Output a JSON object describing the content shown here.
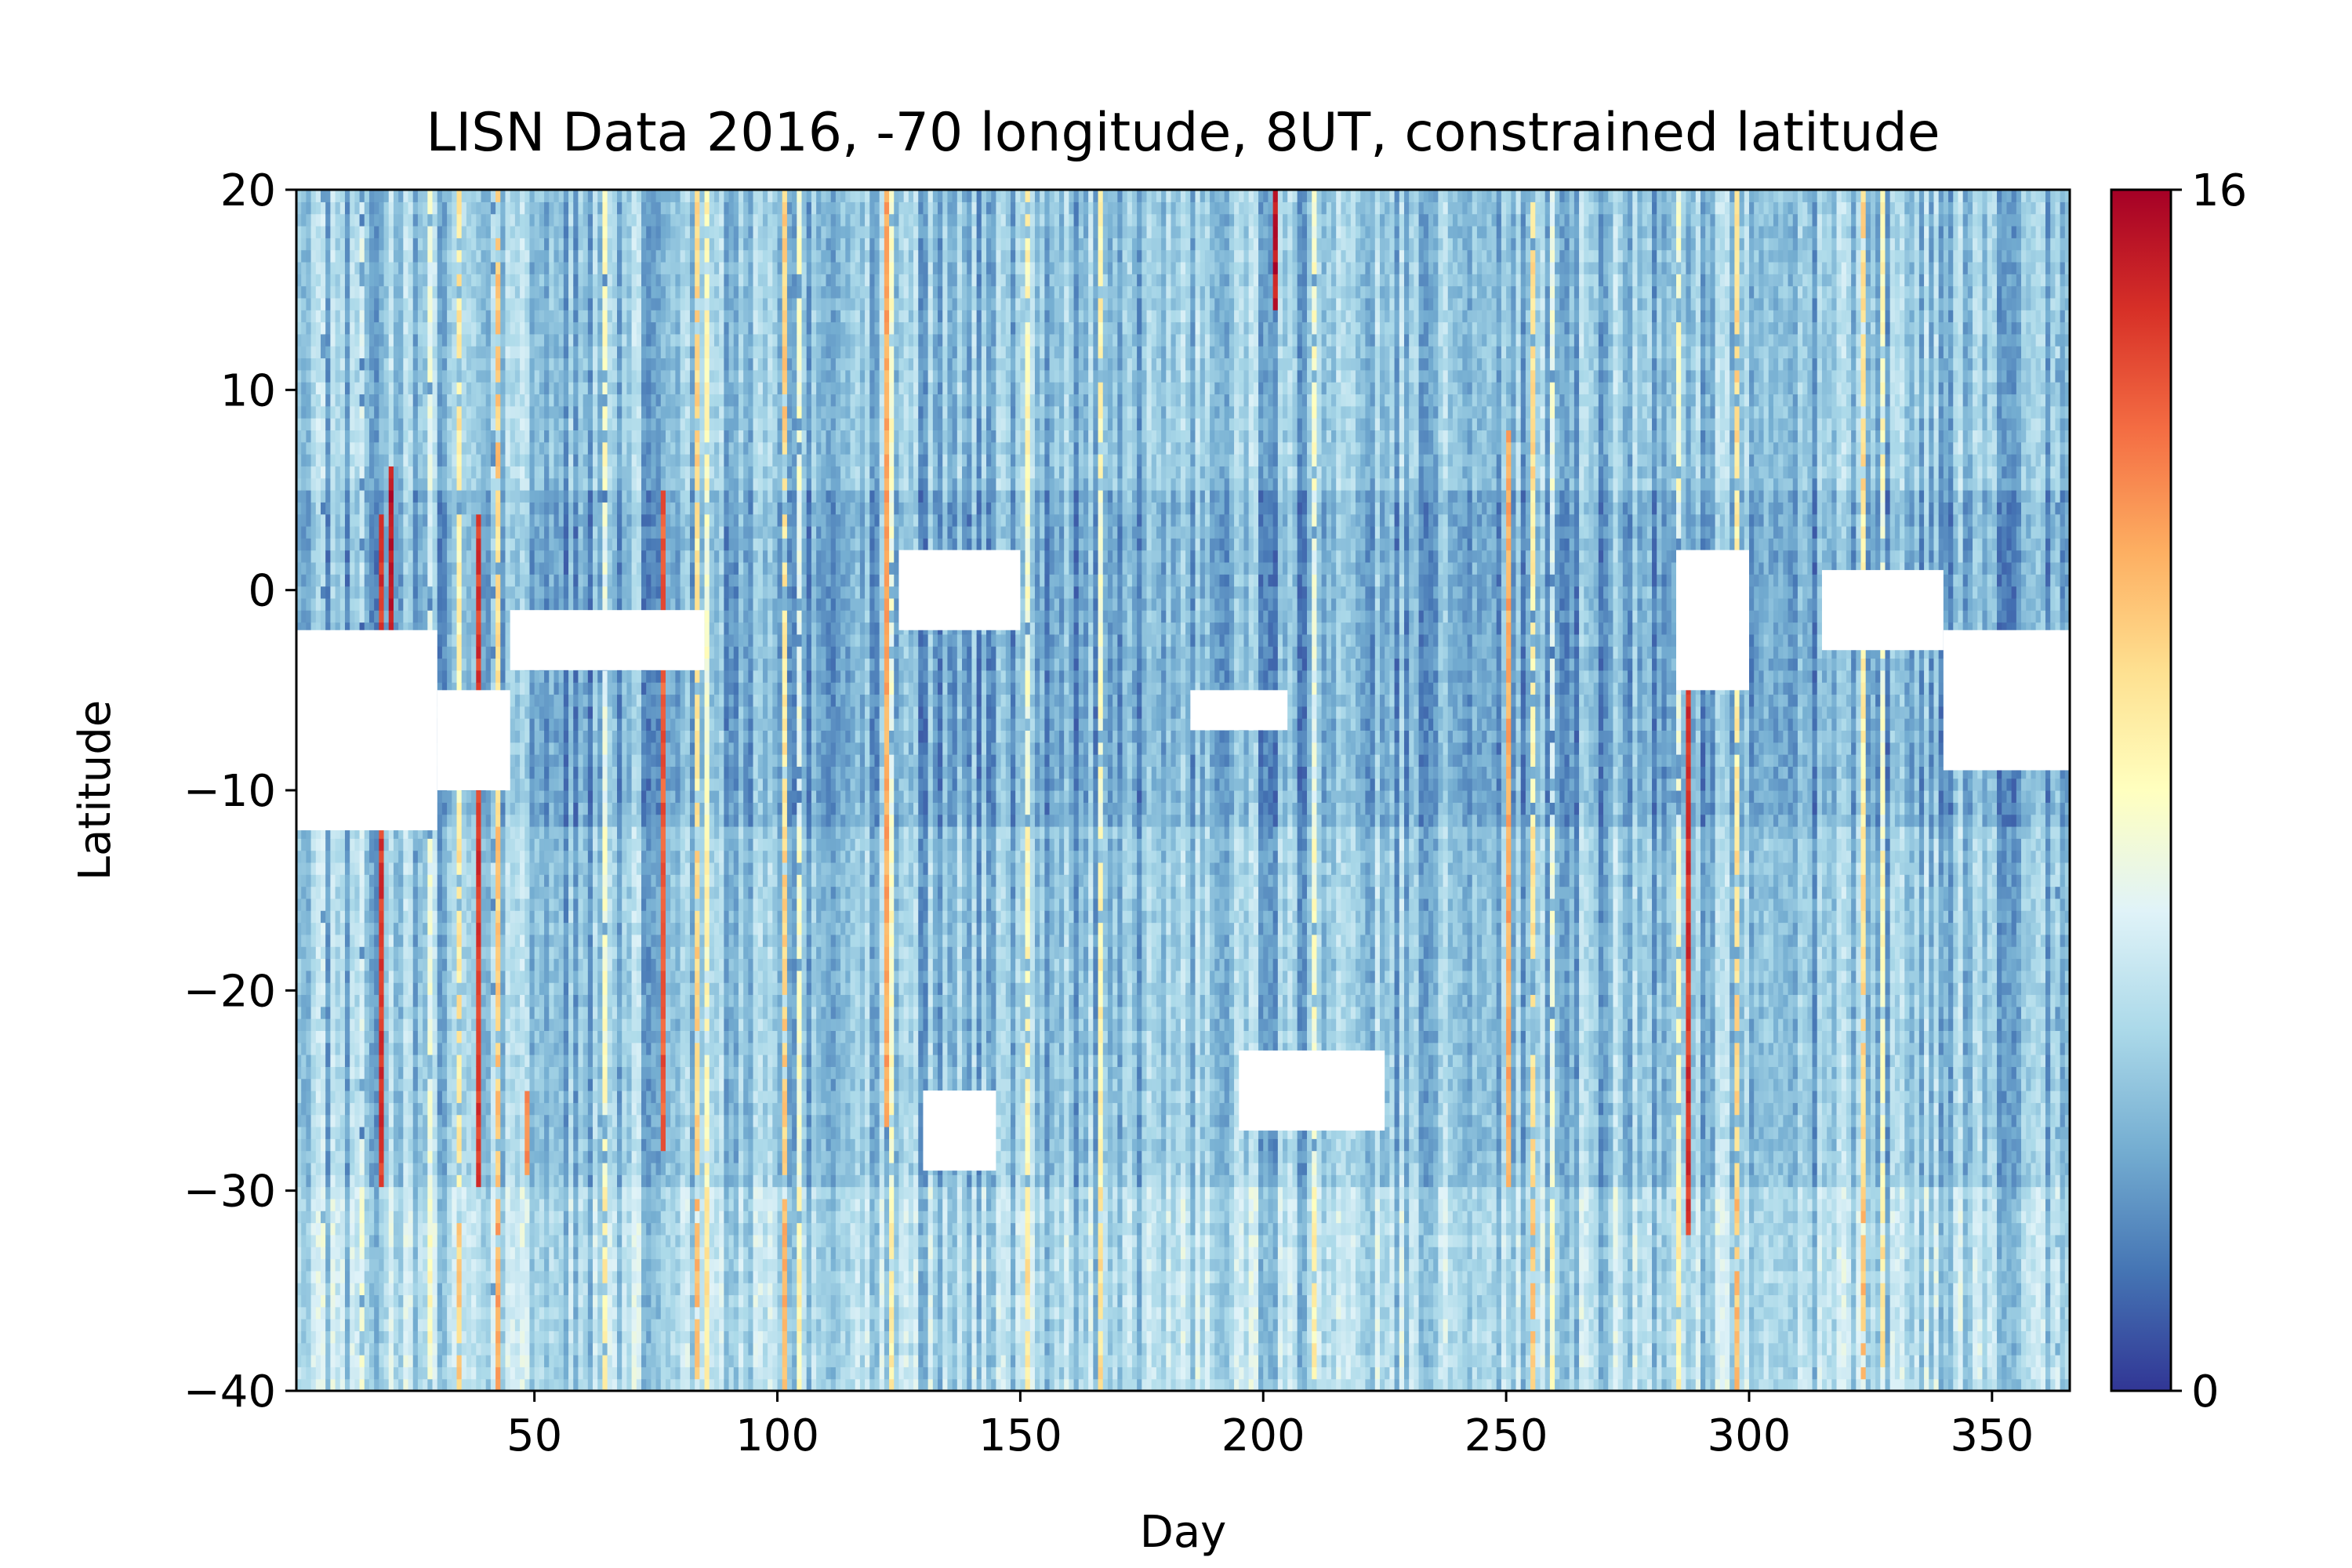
{
  "chart_data": {
    "type": "heatmap",
    "title": "LISN Data 2016, -70 longitude, 8UT, constrained latitude",
    "xlabel": "Day",
    "ylabel": "Latitude",
    "xlim": [
      1,
      366
    ],
    "ylim": [
      -40,
      20
    ],
    "xticks": [
      50,
      100,
      150,
      200,
      250,
      300,
      350
    ],
    "yticks": [
      -40,
      -30,
      -20,
      -10,
      0,
      10,
      20
    ],
    "xtick_labels": [
      "50",
      "100",
      "150",
      "200",
      "250",
      "300",
      "350"
    ],
    "ytick_labels": [
      "−40",
      "−30",
      "−20",
      "−10",
      "0",
      "10",
      "20"
    ],
    "colormap": "RdYlBu_r",
    "colorbar": {
      "min": 0,
      "max": 16,
      "tick_labels": [
        "0",
        "16"
      ],
      "colors": [
        "#313695",
        "#4575b4",
        "#74add1",
        "#abd9e9",
        "#e0f3f8",
        "#ffffbf",
        "#fee090",
        "#fdae61",
        "#f46d43",
        "#d73027",
        "#a50026"
      ]
    },
    "typical_value": 4,
    "high_value_days": [
      {
        "day": 18,
        "lat_range": [
          -30,
          4
        ],
        "value": 15
      },
      {
        "day": 20,
        "lat_range": [
          -8,
          6
        ],
        "value": 16
      },
      {
        "day": 38,
        "lat_range": [
          -30,
          4
        ],
        "value": 15
      },
      {
        "day": 48,
        "lat_range": [
          -29,
          -25
        ],
        "value": 13
      },
      {
        "day": 76,
        "lat_range": [
          -28,
          5
        ],
        "value": 14
      },
      {
        "day": 122,
        "lat_range": [
          -27,
          20
        ],
        "value": 12
      },
      {
        "day": 202,
        "lat_range": [
          14,
          20
        ],
        "value": 16
      },
      {
        "day": 250,
        "lat_range": [
          -30,
          8
        ],
        "value": 12
      },
      {
        "day": 287,
        "lat_range": [
          -32,
          2
        ],
        "value": 15
      }
    ],
    "missing_data_regions": [
      {
        "day_range": [
          1,
          30
        ],
        "lat_range": [
          -12,
          -2
        ]
      },
      {
        "day_range": [
          30,
          45
        ],
        "lat_range": [
          -10,
          -5
        ]
      },
      {
        "day_range": [
          45,
          85
        ],
        "lat_range": [
          -4,
          -1
        ]
      },
      {
        "day_range": [
          125,
          150
        ],
        "lat_range": [
          -2,
          2
        ]
      },
      {
        "day_range": [
          130,
          145
        ],
        "lat_range": [
          -29,
          -25
        ]
      },
      {
        "day_range": [
          185,
          205
        ],
        "lat_range": [
          -7,
          -5
        ]
      },
      {
        "day_range": [
          195,
          225
        ],
        "lat_range": [
          -27,
          -23
        ]
      },
      {
        "day_range": [
          285,
          300
        ],
        "lat_range": [
          -5,
          2
        ]
      },
      {
        "day_range": [
          315,
          340
        ],
        "lat_range": [
          -3,
          1
        ]
      },
      {
        "day_range": [
          340,
          366
        ],
        "lat_range": [
          -9,
          -2
        ]
      }
    ]
  }
}
